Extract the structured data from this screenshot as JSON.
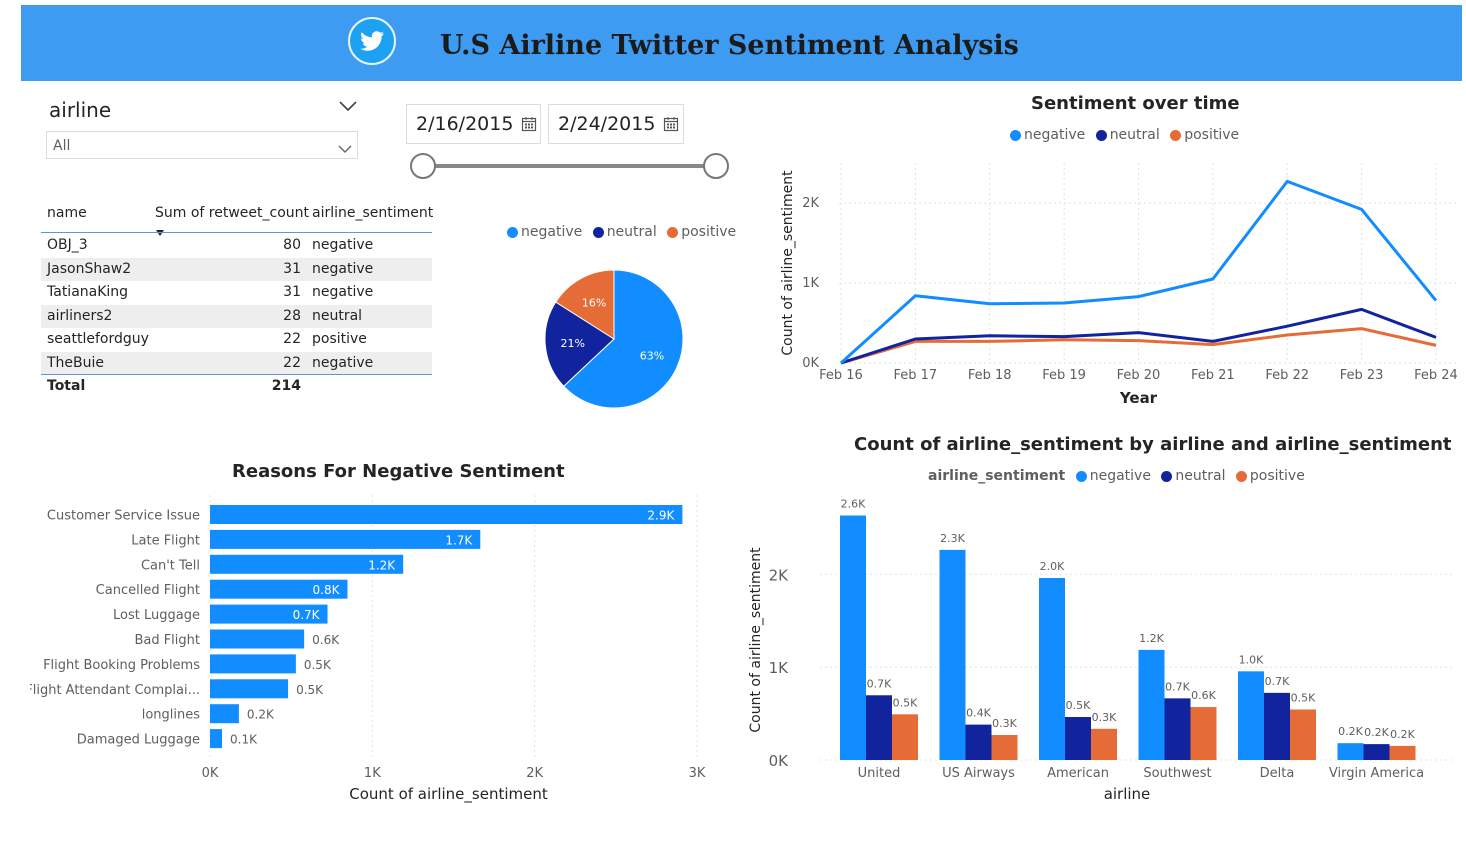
{
  "header": {
    "title": "U.S Airline Twitter Sentiment Analysis",
    "logo_icon": "twitter-bird-icon",
    "background": "#3d9bf1"
  },
  "slicer": {
    "label": "airline",
    "value": "All"
  },
  "date_range": {
    "start": "2/16/2015",
    "end": "2/24/2015"
  },
  "colors": {
    "negative": "#118dff",
    "neutral": "#12239e",
    "positive": "#e66c37"
  },
  "table": {
    "headers": [
      "name",
      "Sum of retweet_count",
      "airline_sentiment"
    ],
    "rows": [
      {
        "name": "OBJ_3",
        "count": "80",
        "sentiment": "negative"
      },
      {
        "name": "JasonShaw2",
        "count": "31",
        "sentiment": "negative"
      },
      {
        "name": "TatianaKing",
        "count": "31",
        "sentiment": "negative"
      },
      {
        "name": "airliners2",
        "count": "28",
        "sentiment": "neutral"
      },
      {
        "name": "seattlefordguy",
        "count": "22",
        "sentiment": "positive"
      },
      {
        "name": "TheBuie",
        "count": "22",
        "sentiment": "negative"
      }
    ],
    "total_label": "Total",
    "total_value": "214"
  },
  "chart_data": [
    {
      "type": "pie",
      "legend": [
        "negative",
        "neutral",
        "positive"
      ],
      "legend_position": "top",
      "labels": [
        "negative",
        "neutral",
        "positive"
      ],
      "values": [
        63,
        21,
        16
      ],
      "data_labels": [
        "63%",
        "21%",
        "16%"
      ]
    },
    {
      "type": "line",
      "title": "Sentiment over time",
      "xlabel": "Year",
      "ylabel": "Count of airline_sentiment",
      "categories": [
        "Feb 16",
        "Feb 17",
        "Feb 18",
        "Feb 19",
        "Feb 20",
        "Feb 21",
        "Feb 22",
        "Feb 23",
        "Feb 24"
      ],
      "ylim": [
        0,
        2500
      ],
      "yticks": [
        0,
        1000,
        2000
      ],
      "ytick_labels": [
        "0K",
        "1K",
        "2K"
      ],
      "grid": true,
      "legend_position": "top",
      "series": [
        {
          "name": "negative",
          "values": [
            0,
            840,
            740,
            750,
            830,
            1050,
            2270,
            1920,
            780
          ]
        },
        {
          "name": "neutral",
          "values": [
            0,
            300,
            340,
            330,
            380,
            270,
            460,
            670,
            320
          ]
        },
        {
          "name": "positive",
          "values": [
            0,
            270,
            270,
            290,
            280,
            230,
            350,
            430,
            220
          ]
        }
      ]
    },
    {
      "type": "bar",
      "orientation": "horizontal",
      "title": "Reasons For Negative Sentiment",
      "xlabel": "Count of airline_sentiment",
      "categories": [
        "Customer Service Issue",
        "Late Flight",
        "Can't Tell",
        "Cancelled Flight",
        "Lost Luggage",
        "Bad Flight",
        "Flight Booking Problems",
        "Flight Attendant Complai...",
        "longlines",
        "Damaged Luggage"
      ],
      "values": [
        2910,
        1665,
        1190,
        847,
        724,
        580,
        529,
        481,
        178,
        74
      ],
      "data_labels": [
        "2.9K",
        "1.7K",
        "1.2K",
        "0.8K",
        "0.7K",
        "0.6K",
        "0.5K",
        "0.5K",
        "0.2K",
        "0.1K"
      ],
      "xlim": [
        0,
        3000
      ],
      "xticks": [
        0,
        1000,
        2000,
        3000
      ],
      "xtick_labels": [
        "0K",
        "1K",
        "2K",
        "3K"
      ],
      "grid": true
    },
    {
      "type": "bar",
      "title": "Count of airline_sentiment by airline and airline_sentiment",
      "legend_title": "airline_sentiment",
      "legend_position": "top",
      "xlabel": "airline",
      "ylabel": "Count of airline_sentiment",
      "categories": [
        "United",
        "US Airways",
        "American",
        "Southwest",
        "Delta",
        "Virgin America"
      ],
      "ylim": [
        0,
        2800
      ],
      "yticks": [
        0,
        1000,
        2000
      ],
      "ytick_labels": [
        "0K",
        "1K",
        "2K"
      ],
      "grid": true,
      "series": [
        {
          "name": "negative",
          "values": [
            2633,
            2263,
            1960,
            1186,
            955,
            181
          ],
          "data_labels": [
            "2.6K",
            "2.3K",
            "2.0K",
            "1.2K",
            "1.0K",
            "0.2K"
          ]
        },
        {
          "name": "neutral",
          "values": [
            697,
            381,
            463,
            664,
            723,
            171
          ],
          "data_labels": [
            "0.7K",
            "0.4K",
            "0.5K",
            "0.7K",
            "0.7K",
            "0.2K"
          ]
        },
        {
          "name": "positive",
          "values": [
            492,
            269,
            336,
            570,
            544,
            152
          ],
          "data_labels": [
            "0.5K",
            "0.3K",
            "0.3K",
            "0.6K",
            "0.5K",
            "0.2K"
          ]
        }
      ]
    }
  ]
}
